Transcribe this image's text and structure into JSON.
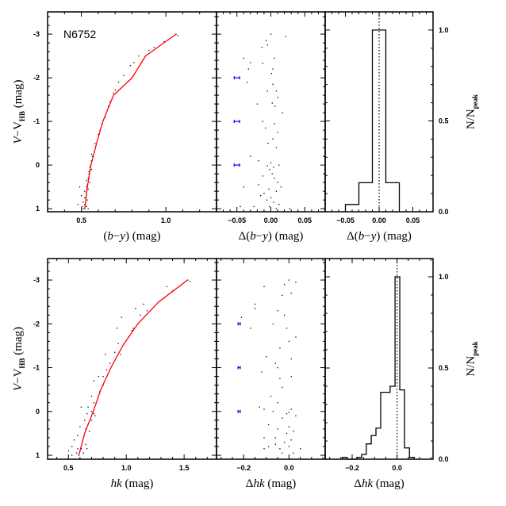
{
  "colors": {
    "fiducial": "#ff0000",
    "errorbar": "#0000ff",
    "points": "#000000",
    "frame": "#000000"
  },
  "chart_data": [
    {
      "id": "top_cmd",
      "type": "scatter",
      "annotation": "N6752",
      "xlabel": {
        "pre": "(",
        "it1": "b",
        "mid": "−",
        "it2": "y",
        "post": ")  (mag)"
      },
      "ylabel": {
        "it": "V",
        "mid": "−V",
        "sub": "HB",
        "post": " (mag)"
      },
      "xlim": [
        0.3,
        1.3
      ],
      "ylim": [
        1.07,
        -3.51
      ],
      "xticks": [
        0.5,
        1.0
      ],
      "xticklabels": [
        "0.5",
        "1.0"
      ],
      "xminor": 0.1,
      "yticks": [
        -3,
        -2,
        -1,
        0,
        1
      ],
      "yticklabels": [
        "-3",
        "-2",
        "-1",
        "0",
        "1"
      ],
      "yminor": 0.2,
      "fiducial": [
        [
          0.52,
          1.0
        ],
        [
          0.535,
          0.5
        ],
        [
          0.557,
          0.0
        ],
        [
          0.59,
          -0.5
        ],
        [
          0.627,
          -1.0
        ],
        [
          0.69,
          -1.6
        ],
        [
          0.8,
          -2.0
        ],
        [
          0.88,
          -2.5
        ],
        [
          1.06,
          -3.0
        ]
      ],
      "points": [
        [
          1.06,
          -3.0
        ],
        [
          1.07,
          -2.97
        ],
        [
          0.99,
          -2.83
        ],
        [
          0.93,
          -2.7
        ],
        [
          0.9,
          -2.63
        ],
        [
          0.84,
          -2.5
        ],
        [
          0.81,
          -2.35
        ],
        [
          0.79,
          -2.28
        ],
        [
          0.75,
          -2.05
        ],
        [
          0.72,
          -1.9
        ],
        [
          0.7,
          -1.72
        ],
        [
          0.69,
          -1.65
        ],
        [
          0.67,
          -1.45
        ],
        [
          0.66,
          -1.35
        ],
        [
          0.64,
          -1.1
        ],
        [
          0.625,
          -0.95
        ],
        [
          0.61,
          -0.8
        ],
        [
          0.6,
          -0.7
        ],
        [
          0.58,
          -0.5
        ],
        [
          0.575,
          -0.3
        ],
        [
          0.565,
          -0.2
        ],
        [
          0.56,
          -0.1
        ],
        [
          0.555,
          0.0
        ],
        [
          0.55,
          0.05
        ],
        [
          0.56,
          0.1
        ],
        [
          0.545,
          0.2
        ],
        [
          0.54,
          0.3
        ],
        [
          0.53,
          0.35
        ],
        [
          0.55,
          0.4
        ],
        [
          0.49,
          0.5
        ],
        [
          0.53,
          0.5
        ],
        [
          0.54,
          0.55
        ],
        [
          0.52,
          0.6
        ],
        [
          0.53,
          0.65
        ],
        [
          0.5,
          0.7
        ],
        [
          0.52,
          0.75
        ],
        [
          0.535,
          0.8
        ],
        [
          0.51,
          0.85
        ],
        [
          0.52,
          0.9
        ],
        [
          0.48,
          0.9
        ],
        [
          0.505,
          0.95
        ],
        [
          0.53,
          0.95
        ],
        [
          0.52,
          1.0
        ],
        [
          0.51,
          1.0
        ],
        [
          0.54,
          1.0
        ],
        [
          0.545,
          0.15
        ],
        [
          0.535,
          0.45
        ],
        [
          0.56,
          -0.25
        ]
      ]
    },
    {
      "id": "top_resid",
      "type": "scatter",
      "xlabel": {
        "pre": "Δ(",
        "it1": "b",
        "mid": "−",
        "it2": "y",
        "post": ")  (mag)"
      },
      "xlim": [
        -0.08,
        0.08
      ],
      "ylim": [
        1.07,
        -3.51
      ],
      "xticks": [
        -0.05,
        0.0,
        0.05
      ],
      "xticklabels": [
        "−0.05",
        "0.00",
        "0.05"
      ],
      "xminor": 0.01,
      "yticks": [
        -3,
        -2,
        -1,
        0,
        1
      ],
      "yminor": 0.2,
      "errorbars": [
        {
          "x": -0.05,
          "y": -2,
          "err": 0.004
        },
        {
          "x": -0.05,
          "y": -1,
          "err": 0.004
        },
        {
          "x": -0.05,
          "y": 0,
          "err": 0.004
        }
      ],
      "points": [
        [
          0.0,
          -3.0
        ],
        [
          0.022,
          -2.95
        ],
        [
          -0.007,
          -2.85
        ],
        [
          -0.013,
          -2.7
        ],
        [
          -0.005,
          -2.75
        ],
        [
          -0.04,
          -2.45
        ],
        [
          0.005,
          -2.45
        ],
        [
          -0.03,
          -2.35
        ],
        [
          -0.012,
          -2.33
        ],
        [
          -0.033,
          -2.2
        ],
        [
          0.003,
          -2.2
        ],
        [
          0.001,
          -2.1
        ],
        [
          -0.035,
          -1.9
        ],
        [
          0.003,
          -1.85
        ],
        [
          -0.005,
          -1.7
        ],
        [
          0.008,
          -1.7
        ],
        [
          0.01,
          -1.55
        ],
        [
          -0.02,
          -1.4
        ],
        [
          0.002,
          -1.42
        ],
        [
          0.006,
          -1.35
        ],
        [
          0.017,
          -1.2
        ],
        [
          -0.012,
          -1.0
        ],
        [
          0.005,
          -0.95
        ],
        [
          -0.008,
          -0.85
        ],
        [
          0.01,
          -0.75
        ],
        [
          0.003,
          -0.6
        ],
        [
          -0.004,
          -0.5
        ],
        [
          0.008,
          -0.4
        ],
        [
          -0.03,
          -0.2
        ],
        [
          -0.018,
          -0.1
        ],
        [
          -0.005,
          0.02
        ],
        [
          0.0,
          -0.05
        ],
        [
          0.004,
          0.05
        ],
        [
          -0.002,
          0.1
        ],
        [
          0.012,
          0.0
        ],
        [
          -0.012,
          0.25
        ],
        [
          0.005,
          0.3
        ],
        [
          -0.018,
          0.45
        ],
        [
          0.01,
          0.4
        ],
        [
          -0.04,
          0.5
        ],
        [
          -0.003,
          0.55
        ],
        [
          0.008,
          0.6
        ],
        [
          0.015,
          0.5
        ],
        [
          -0.015,
          0.7
        ],
        [
          0.0,
          0.75
        ],
        [
          -0.006,
          0.8
        ],
        [
          0.004,
          0.85
        ],
        [
          0.012,
          0.9
        ],
        [
          -0.025,
          0.95
        ],
        [
          -0.002,
          0.95
        ],
        [
          0.008,
          1.0
        ],
        [
          -0.045,
          0.95
        ],
        [
          0.028,
          1.0
        ],
        [
          -0.01,
          0.65
        ],
        [
          0.002,
          0.2
        ]
      ]
    },
    {
      "id": "top_hist",
      "type": "bar",
      "xlabel": {
        "pre": "Δ(",
        "it1": "b",
        "mid": "−",
        "it2": "y",
        "post": ")  (mag)"
      },
      "ylabel": {
        "main": "N/N",
        "sub": "peak"
      },
      "xlim": [
        -0.08,
        0.08
      ],
      "ylim": [
        0,
        1.1
      ],
      "xticks": [
        -0.05,
        0.0,
        0.05
      ],
      "xticklabels": [
        "−0.05",
        "0.00",
        "0.05"
      ],
      "xminor": 0.01,
      "yticks": [
        0.0,
        0.5,
        1.0
      ],
      "yticklabels": [
        "0.0",
        "0.5",
        "1.0"
      ],
      "yminor": 0.1,
      "bin_edges": [
        -0.05,
        -0.03,
        -0.01,
        0.01,
        0.03
      ],
      "values": [
        0.04,
        0.16,
        1.0,
        0.16
      ],
      "reference_line_x": 0.0
    },
    {
      "id": "bottom_cmd",
      "type": "scatter",
      "xlabel": {
        "it": "hk",
        "post": "  (mag)"
      },
      "ylabel": {
        "it": "V",
        "mid": "−V",
        "sub": "HB",
        "post": " (mag)"
      },
      "xlim": [
        0.32,
        1.78
      ],
      "ylim": [
        1.09,
        -3.49
      ],
      "xticks": [
        0.5,
        1.0,
        1.5
      ],
      "xticklabels": [
        "0.5",
        "1.0",
        "1.5"
      ],
      "xminor": 0.1,
      "yticks": [
        -3,
        -2,
        -1,
        0,
        1
      ],
      "yticklabels": [
        "-3",
        "-2",
        "-1",
        "0",
        "1"
      ],
      "yminor": 0.2,
      "fiducial": [
        [
          0.59,
          1.0
        ],
        [
          0.64,
          0.5
        ],
        [
          0.715,
          0.0
        ],
        [
          0.78,
          -0.5
        ],
        [
          0.868,
          -1.0
        ],
        [
          0.97,
          -1.5
        ],
        [
          1.1,
          -2.0
        ],
        [
          1.28,
          -2.5
        ],
        [
          1.53,
          -3.0
        ]
      ],
      "points": [
        [
          1.53,
          -3.0
        ],
        [
          1.55,
          -2.97
        ],
        [
          1.35,
          -2.85
        ],
        [
          1.4,
          -2.75
        ],
        [
          1.33,
          -2.6
        ],
        [
          1.15,
          -2.45
        ],
        [
          1.08,
          -2.35
        ],
        [
          1.18,
          -2.3
        ],
        [
          0.96,
          -2.15
        ],
        [
          1.12,
          -2.2
        ],
        [
          1.06,
          -1.9
        ],
        [
          0.92,
          -1.9
        ],
        [
          1.02,
          -1.7
        ],
        [
          1.05,
          -1.85
        ],
        [
          0.93,
          -1.55
        ],
        [
          0.9,
          -1.35
        ],
        [
          0.95,
          -1.3
        ],
        [
          0.82,
          -1.3
        ],
        [
          0.86,
          -1.1
        ],
        [
          0.83,
          -0.95
        ],
        [
          0.8,
          -0.8
        ],
        [
          0.76,
          -0.8
        ],
        [
          0.72,
          -0.7
        ],
        [
          0.8,
          -0.6
        ],
        [
          0.77,
          -0.45
        ],
        [
          0.7,
          -0.35
        ],
        [
          0.72,
          -0.2
        ],
        [
          0.67,
          -0.1
        ],
        [
          0.61,
          -0.1
        ],
        [
          0.7,
          0.0
        ],
        [
          0.72,
          0.05
        ],
        [
          0.66,
          0.05
        ],
        [
          0.73,
          0.1
        ],
        [
          0.64,
          0.2
        ],
        [
          0.7,
          0.2
        ],
        [
          0.6,
          0.35
        ],
        [
          0.65,
          0.4
        ],
        [
          0.68,
          0.45
        ],
        [
          0.58,
          0.55
        ],
        [
          0.63,
          0.6
        ],
        [
          0.55,
          0.65
        ],
        [
          0.62,
          0.7
        ],
        [
          0.65,
          0.75
        ],
        [
          0.53,
          0.8
        ],
        [
          0.58,
          0.85
        ],
        [
          0.61,
          0.85
        ],
        [
          0.5,
          0.9
        ],
        [
          0.57,
          0.95
        ],
        [
          0.63,
          0.95
        ],
        [
          0.59,
          1.0
        ],
        [
          0.53,
          1.0
        ],
        [
          0.66,
          0.85
        ]
      ]
    },
    {
      "id": "bottom_resid",
      "type": "scatter",
      "xlabel": {
        "pre": "Δ",
        "it": "hk",
        "post": "  (mag)"
      },
      "xlim": [
        -0.32,
        0.16
      ],
      "ylim": [
        1.09,
        -3.49
      ],
      "xticks": [
        -0.2,
        0.0
      ],
      "xticklabels": [
        "−0.2",
        "0.0"
      ],
      "xminor": 0.05,
      "yticks": [
        -3,
        -2,
        -1,
        0,
        1
      ],
      "yminor": 0.2,
      "errorbars": [
        {
          "x": -0.22,
          "y": -2,
          "err": 0.005
        },
        {
          "x": -0.22,
          "y": -1,
          "err": 0.005
        },
        {
          "x": -0.22,
          "y": 0,
          "err": 0.005
        }
      ],
      "points": [
        [
          0.0,
          -3.0
        ],
        [
          0.03,
          -2.95
        ],
        [
          -0.02,
          -2.9
        ],
        [
          -0.11,
          -2.85
        ],
        [
          -0.03,
          -2.65
        ],
        [
          0.01,
          -2.7
        ],
        [
          -0.15,
          -2.45
        ],
        [
          -0.15,
          -2.35
        ],
        [
          -0.05,
          -2.3
        ],
        [
          -0.02,
          -2.2
        ],
        [
          -0.21,
          -2.15
        ],
        [
          -0.17,
          -1.9
        ],
        [
          -0.07,
          -2.0
        ],
        [
          -0.01,
          -1.9
        ],
        [
          0.03,
          -1.7
        ],
        [
          0.0,
          -1.6
        ],
        [
          -0.04,
          -1.45
        ],
        [
          -0.1,
          -1.25
        ],
        [
          -0.06,
          -1.1
        ],
        [
          0.01,
          -1.2
        ],
        [
          -0.05,
          -1.0
        ],
        [
          -0.12,
          -0.9
        ],
        [
          -0.04,
          -0.75
        ],
        [
          0.01,
          -0.8
        ],
        [
          -0.03,
          -0.55
        ],
        [
          -0.08,
          -0.35
        ],
        [
          -0.05,
          -0.2
        ],
        [
          -0.13,
          -0.1
        ],
        [
          -0.11,
          -0.05
        ],
        [
          -0.07,
          0.0
        ],
        [
          0.0,
          0.02
        ],
        [
          -0.01,
          0.05
        ],
        [
          0.01,
          -0.05
        ],
        [
          0.03,
          0.1
        ],
        [
          -0.03,
          0.15
        ],
        [
          -0.09,
          0.3
        ],
        [
          -0.05,
          0.4
        ],
        [
          0.0,
          0.35
        ],
        [
          0.02,
          0.45
        ],
        [
          -0.11,
          0.6
        ],
        [
          -0.06,
          0.6
        ],
        [
          -0.02,
          0.7
        ],
        [
          0.01,
          0.65
        ],
        [
          -0.09,
          0.8
        ],
        [
          -0.04,
          0.85
        ],
        [
          0.0,
          0.8
        ],
        [
          0.05,
          0.85
        ],
        [
          -0.11,
          0.85
        ],
        [
          -0.03,
          0.95
        ],
        [
          0.02,
          0.95
        ],
        [
          -0.06,
          0.75
        ],
        [
          -0.01,
          0.5
        ]
      ]
    },
    {
      "id": "bottom_hist",
      "type": "bar",
      "xlabel": {
        "pre": "Δ",
        "it": "hk",
        "post": "  (mag)"
      },
      "ylabel": {
        "main": "N/N",
        "sub": "peak"
      },
      "xlim": [
        -0.32,
        0.16
      ],
      "ylim": [
        0,
        1.1
      ],
      "xticks": [
        -0.2,
        0.0
      ],
      "xticklabels": [
        "−0.2",
        "0.0"
      ],
      "xminor": 0.05,
      "yticks": [
        0.0,
        0.5,
        1.0
      ],
      "yticklabels": [
        "0.0",
        "0.5",
        "1.0"
      ],
      "yminor": 0.1,
      "bin_edges": [
        -0.243,
        -0.222,
        -0.2,
        -0.179,
        -0.158,
        -0.137,
        -0.115,
        -0.094,
        -0.073,
        -0.052,
        -0.031,
        -0.009,
        0.012,
        0.033,
        0.055,
        0.076
      ],
      "values": [
        0.01,
        0.0,
        0.0,
        0.01,
        0.026,
        0.084,
        0.13,
        0.17,
        0.367,
        0.367,
        0.4,
        1.0,
        0.38,
        0.062,
        0.01
      ],
      "reference_line_x": 0.0
    }
  ]
}
